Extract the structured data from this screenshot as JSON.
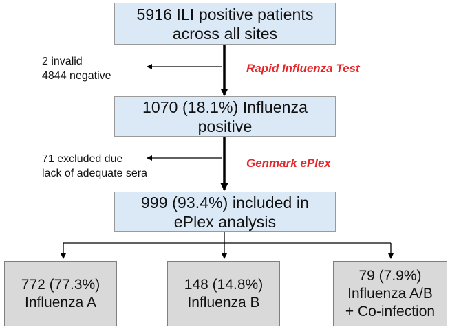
{
  "flowchart": {
    "box_top": {
      "lines": [
        "5916 ILI positive patients",
        "across all sites"
      ]
    },
    "exclusion_1": {
      "lines": [
        "2  invalid",
        "4844 negative"
      ]
    },
    "method_1": {
      "label": "Rapid Influenza Test",
      "color": "#e8262a"
    },
    "box_middle": {
      "lines": [
        "1070 (18.1%) Influenza",
        "positive"
      ]
    },
    "exclusion_2": {
      "lines": [
        "71 excluded due",
        "lack of adequate sera"
      ]
    },
    "method_2": {
      "label": "Genmark ePlex",
      "color": "#e8262a"
    },
    "box_analysis": {
      "lines": [
        "999 (93.4%) included in",
        "ePlex analysis"
      ]
    },
    "outcomes": [
      {
        "lines": [
          "772 (77.3%)",
          "Influenza A"
        ]
      },
      {
        "lines": [
          "148 (14.8%)",
          "Influenza B"
        ]
      },
      {
        "lines": [
          "79 (7.9%)",
          "Influenza A/B",
          "+ Co-infection"
        ]
      }
    ]
  },
  "colors": {
    "stage_box_fill": "#dbe8f5",
    "outcome_box_fill": "#d9d9d9",
    "arrow": "#000000"
  }
}
